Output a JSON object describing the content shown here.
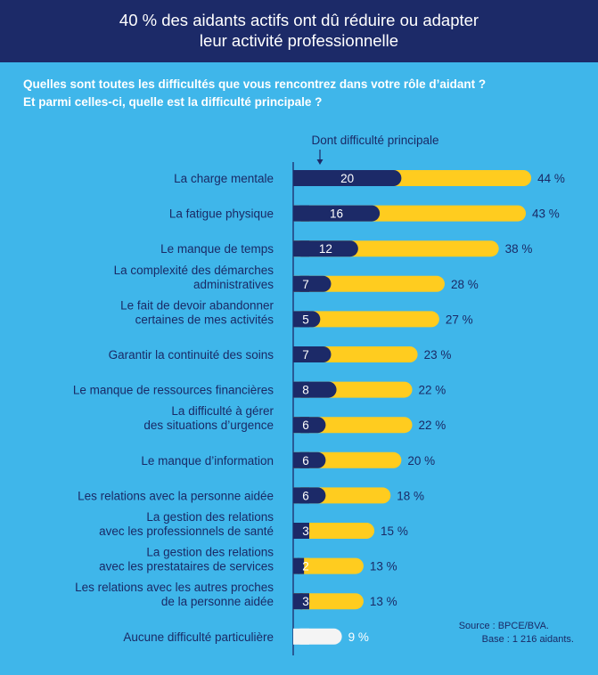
{
  "header": {
    "line1": "40 % des aidants actifs ont dû réduire ou adapter",
    "line2": "leur activité professionnelle"
  },
  "question": {
    "line1": "Quelles sont toutes les difficultés que vous rencontrez dans votre rôle d’aidant ?",
    "line2": "Et parmi celles-ci, quelle est la difficulté principale ?"
  },
  "legend": {
    "principal_label": "Dont difficulté principale",
    "arrow_icon": "down-arrow-icon"
  },
  "source": {
    "line1": "Source : BPCE/BVA.",
    "line2": "Base : 1 216 aidants."
  },
  "colors": {
    "background": "#3fb6ea",
    "header": "#1c2a68",
    "principal_bar": "#1c2a68",
    "total_bar": "#ffcc1f",
    "none_bar": "#f4f4f4",
    "text_dark": "#1a2a66",
    "axis": "#1c2a68"
  },
  "chart_data": {
    "type": "bar",
    "orientation": "horizontal",
    "unit_total": "%",
    "categories": [
      [
        "La charge mentale"
      ],
      [
        "La fatigue physique"
      ],
      [
        "Le manque de temps"
      ],
      [
        "La complexité des démarches",
        "administratives"
      ],
      [
        "Le fait de devoir abandonner",
        "certaines de mes activités"
      ],
      [
        "Garantir la continuité des soins"
      ],
      [
        "Le manque de ressources financières"
      ],
      [
        "La difficulté à gérer",
        "des situations d’urgence"
      ],
      [
        "Le manque d’information"
      ],
      [
        "Les relations avec la personne aidée"
      ],
      [
        "La gestion des relations",
        "avec les professionnels de santé"
      ],
      [
        "La gestion des relations",
        "avec les prestataires de services"
      ],
      [
        "Les relations avec les autres proches",
        "de la personne aidée"
      ],
      [
        "Aucune difficulté particulière"
      ]
    ],
    "series": [
      {
        "name": "Dont difficulté principale",
        "values": [
          20,
          16,
          12,
          7,
          5,
          7,
          8,
          6,
          6,
          6,
          3,
          2,
          3,
          null
        ]
      },
      {
        "values": [
          44,
          43,
          38,
          28,
          27,
          23,
          22,
          22,
          20,
          18,
          15,
          13,
          13,
          9
        ]
      }
    ],
    "value_labels_principal": [
      "20",
      "16",
      "12",
      "7",
      "5",
      "7",
      "8",
      "6",
      "6",
      "6",
      "3",
      "2",
      "3",
      ""
    ],
    "value_labels_total": [
      "44 %",
      "43 %",
      "38 %",
      "28 %",
      "27 %",
      "23 %",
      "22 %",
      "22 %",
      "20 %",
      "18 %",
      "15 %",
      "13 %",
      "13 %",
      "9 %"
    ],
    "grid": false,
    "legend_position": "top"
  }
}
